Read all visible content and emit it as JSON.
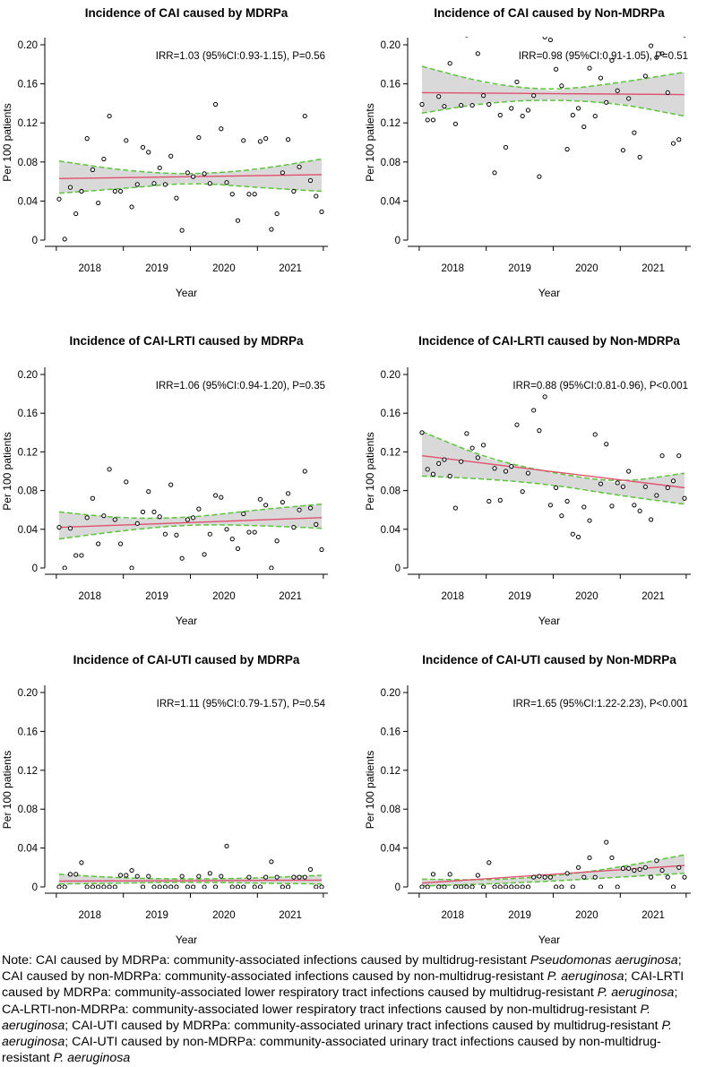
{
  "chart_data": [
    {
      "type": "scatter",
      "title": "Incidence of CAI caused by MDRPa",
      "annotation": "IRR=1.03 (95%CI:0.93-1.15), P=0.56",
      "xlabel": "Year",
      "ylabel": "Per 100 patients",
      "x_ticks": [
        "2018",
        "2019",
        "2020",
        "2021"
      ],
      "y_ticks": [
        "0",
        "0.04",
        "0.08",
        "0.12",
        "0.16",
        "0.20"
      ],
      "ylim": [
        0,
        0.2
      ],
      "x": [
        1,
        2,
        3,
        4,
        5,
        6,
        7,
        8,
        9,
        10,
        11,
        12,
        13,
        14,
        15,
        16,
        17,
        18,
        19,
        20,
        21,
        22,
        23,
        24,
        25,
        26,
        27,
        28,
        29,
        30,
        31,
        32,
        33,
        34,
        35,
        36,
        37,
        38,
        39,
        40,
        41,
        42,
        43,
        44,
        45,
        46,
        47,
        48
      ],
      "values": [
        0.042,
        0.001,
        0.054,
        0.027,
        0.05,
        0.104,
        0.072,
        0.038,
        0.083,
        0.127,
        0.05,
        0.05,
        0.102,
        0.034,
        0.057,
        0.095,
        0.09,
        0.058,
        0.074,
        0.057,
        0.086,
        0.043,
        0.01,
        0.069,
        0.065,
        0.105,
        0.068,
        0.058,
        0.139,
        0.114,
        0.059,
        0.047,
        0.02,
        0.102,
        0.047,
        0.047,
        0.101,
        0.104,
        0.011,
        0.027,
        0.069,
        0.103,
        0.05,
        0.075,
        0.127,
        0.061,
        0.045,
        0.029
      ],
      "fit": [
        0.063,
        0.067
      ],
      "ci_lower": [
        0.048,
        0.053,
        0.059,
        0.054,
        0.05
      ],
      "ci_upper": [
        0.081,
        0.071,
        0.067,
        0.072,
        0.083
      ],
      "colors": {
        "fit": "#e0506e",
        "ci": "#5cc43c",
        "band": "#d9d9d9"
      }
    },
    {
      "type": "scatter",
      "title": "Incidence of CAI caused by Non-MDRPa",
      "annotation": "IRR=0.98 (95%CI:0.91-1.05), P=0.51",
      "xlabel": "Year",
      "ylabel": "Per 100 patients",
      "x_ticks": [
        "2018",
        "2019",
        "2020",
        "2021"
      ],
      "y_ticks": [
        "0",
        "0.04",
        "0.08",
        "0.12",
        "0.16",
        "0.20"
      ],
      "ylim": [
        0,
        0.2
      ],
      "x": [
        1,
        2,
        3,
        4,
        5,
        6,
        7,
        8,
        9,
        10,
        11,
        12,
        13,
        14,
        15,
        16,
        17,
        18,
        19,
        20,
        21,
        22,
        23,
        24,
        25,
        26,
        27,
        28,
        29,
        30,
        31,
        32,
        33,
        34,
        35,
        36,
        37,
        38,
        39,
        40,
        41,
        42,
        43,
        44,
        45,
        46,
        47,
        48
      ],
      "values": [
        0.139,
        0.123,
        0.123,
        0.147,
        0.137,
        0.181,
        0.119,
        0.138,
        0.21,
        0.138,
        0.191,
        0.148,
        0.139,
        0.069,
        0.128,
        0.095,
        0.135,
        0.162,
        0.127,
        0.133,
        0.148,
        0.065,
        0.208,
        0.205,
        0.175,
        0.158,
        0.093,
        0.128,
        0.135,
        0.116,
        0.176,
        0.127,
        0.166,
        0.141,
        0.184,
        0.153,
        0.092,
        0.145,
        0.11,
        0.085,
        0.168,
        0.199,
        0.187,
        0.191,
        0.151,
        0.099,
        0.103,
        0.21
      ],
      "fit": [
        0.151,
        0.149
      ],
      "ci_lower": [
        0.13,
        0.141,
        0.144,
        0.14,
        0.127
      ],
      "ci_upper": [
        0.178,
        0.16,
        0.153,
        0.161,
        0.172
      ],
      "colors": {
        "fit": "#e0506e",
        "ci": "#5cc43c",
        "band": "#d9d9d9"
      }
    },
    {
      "type": "scatter",
      "title": "Incidence of CAI-LRTI caused by MDRPa",
      "annotation": "IRR=1.06 (95%CI:0.94-1.20), P=0.35",
      "xlabel": "Year",
      "ylabel": "Per 100 patients",
      "x_ticks": [
        "2018",
        "2019",
        "2020",
        "2021"
      ],
      "y_ticks": [
        "0",
        "0.04",
        "0.08",
        "0.12",
        "0.16",
        "0.20"
      ],
      "ylim": [
        0,
        0.2
      ],
      "x": [
        1,
        2,
        3,
        4,
        5,
        6,
        7,
        8,
        9,
        10,
        11,
        12,
        13,
        14,
        15,
        16,
        17,
        18,
        19,
        20,
        21,
        22,
        23,
        24,
        25,
        26,
        27,
        28,
        29,
        30,
        31,
        32,
        33,
        34,
        35,
        36,
        37,
        38,
        39,
        40,
        41,
        42,
        43,
        44,
        45,
        46,
        47,
        48
      ],
      "values": [
        0.042,
        0.0,
        0.041,
        0.013,
        0.013,
        0.052,
        0.072,
        0.025,
        0.054,
        0.102,
        0.05,
        0.025,
        0.089,
        0.0,
        0.046,
        0.058,
        0.079,
        0.058,
        0.053,
        0.035,
        0.086,
        0.034,
        0.01,
        0.05,
        0.052,
        0.061,
        0.014,
        0.035,
        0.075,
        0.073,
        0.04,
        0.03,
        0.02,
        0.056,
        0.037,
        0.037,
        0.071,
        0.065,
        0.0,
        0.028,
        0.068,
        0.077,
        0.042,
        0.06,
        0.1,
        0.062,
        0.045,
        0.019
      ],
      "fit": [
        0.042,
        0.052
      ],
      "ci_lower": [
        0.03,
        0.039,
        0.045,
        0.044,
        0.041
      ],
      "ci_upper": [
        0.058,
        0.051,
        0.052,
        0.06,
        0.066
      ],
      "colors": {
        "fit": "#e0506e",
        "ci": "#5cc43c",
        "band": "#d9d9d9"
      }
    },
    {
      "type": "scatter",
      "title": "Incidence of CAI-LRTI caused by Non-MDRPa",
      "annotation": "IRR=0.88 (95%CI:0.81-0.96), P<0.001",
      "xlabel": "Year",
      "ylabel": "Per 100 patients",
      "x_ticks": [
        "2018",
        "2019",
        "2020",
        "2021"
      ],
      "y_ticks": [
        "0",
        "0.04",
        "0.08",
        "0.12",
        "0.16",
        "0.20"
      ],
      "ylim": [
        0,
        0.2
      ],
      "x": [
        1,
        2,
        3,
        4,
        5,
        6,
        7,
        8,
        9,
        10,
        11,
        12,
        13,
        14,
        15,
        16,
        17,
        18,
        19,
        20,
        21,
        22,
        23,
        24,
        25,
        26,
        27,
        28,
        29,
        30,
        31,
        32,
        33,
        34,
        35,
        36,
        37,
        38,
        39,
        40,
        41,
        42,
        43,
        44,
        45,
        46,
        47,
        48
      ],
      "values": [
        0.14,
        0.102,
        0.097,
        0.108,
        0.112,
        0.095,
        0.062,
        0.11,
        0.139,
        0.124,
        0.114,
        0.127,
        0.069,
        0.103,
        0.07,
        0.1,
        0.105,
        0.148,
        0.079,
        0.098,
        0.163,
        0.142,
        0.177,
        0.065,
        0.083,
        0.054,
        0.069,
        0.035,
        0.032,
        0.063,
        0.049,
        0.138,
        0.087,
        0.128,
        0.064,
        0.088,
        0.084,
        0.1,
        0.065,
        0.059,
        0.084,
        0.05,
        0.075,
        0.116,
        0.083,
        0.09,
        0.116,
        0.072
      ],
      "fit": [
        0.116,
        0.083
      ],
      "ci_lower": [
        0.095,
        0.092,
        0.086,
        0.075,
        0.066
      ],
      "ci_upper": [
        0.141,
        0.113,
        0.098,
        0.088,
        0.098
      ],
      "colors": {
        "fit": "#e0506e",
        "ci": "#5cc43c",
        "band": "#d9d9d9"
      }
    },
    {
      "type": "scatter",
      "title": "Incidence of CAI-UTI caused by MDRPa",
      "annotation": "IRR=1.11 (95%CI:0.79-1.57), P=0.54",
      "xlabel": "Year",
      "ylabel": "Per 100 patients",
      "x_ticks": [
        "2018",
        "2019",
        "2020",
        "2021"
      ],
      "y_ticks": [
        "0",
        "0.04",
        "0.08",
        "0.12",
        "0.16",
        "0.20"
      ],
      "ylim": [
        0,
        0.2
      ],
      "x": [
        1,
        2,
        3,
        4,
        5,
        6,
        7,
        8,
        9,
        10,
        11,
        12,
        13,
        14,
        15,
        16,
        17,
        18,
        19,
        20,
        21,
        22,
        23,
        24,
        25,
        26,
        27,
        28,
        29,
        30,
        31,
        32,
        33,
        34,
        35,
        36,
        37,
        38,
        39,
        40,
        41,
        42,
        43,
        44,
        45,
        46,
        47,
        48
      ],
      "values": [
        0.0,
        0.0,
        0.013,
        0.013,
        0.025,
        0.0,
        0.0,
        0.0,
        0.0,
        0.0,
        0.0,
        0.012,
        0.012,
        0.017,
        0.011,
        0.0,
        0.011,
        0.0,
        0.0,
        0.0,
        0.0,
        0.0,
        0.011,
        0.0,
        0.0,
        0.011,
        0.0,
        0.014,
        0.0,
        0.011,
        0.042,
        0.0,
        0.0,
        0.0,
        0.01,
        0.0,
        0.0,
        0.01,
        0.026,
        0.01,
        0.0,
        0.0,
        0.01,
        0.01,
        0.01,
        0.018,
        0.0,
        0.0
      ],
      "fit": [
        0.006,
        0.007
      ],
      "ci_lower": [
        0.003,
        0.004,
        0.005,
        0.004,
        0.003
      ],
      "ci_upper": [
        0.013,
        0.009,
        0.008,
        0.009,
        0.012
      ],
      "colors": {
        "fit": "#e0506e",
        "ci": "#5cc43c",
        "band": "#d9d9d9"
      }
    },
    {
      "type": "scatter",
      "title": "Incidence of CAI-UTI caused by Non-MDRPa",
      "annotation": "IRR=1.65 (95%CI:1.22-2.23), P<0.001",
      "xlabel": "Year",
      "ylabel": "Per 100 patients",
      "x_ticks": [
        "2018",
        "2019",
        "2020",
        "2021"
      ],
      "y_ticks": [
        "0",
        "0.04",
        "0.08",
        "0.12",
        "0.16",
        "0.20"
      ],
      "ylim": [
        0,
        0.2
      ],
      "x": [
        1,
        2,
        3,
        4,
        5,
        6,
        7,
        8,
        9,
        10,
        11,
        12,
        13,
        14,
        15,
        16,
        17,
        18,
        19,
        20,
        21,
        22,
        23,
        24,
        25,
        26,
        27,
        28,
        29,
        30,
        31,
        32,
        33,
        34,
        35,
        36,
        37,
        38,
        39,
        40,
        41,
        42,
        43,
        44,
        45,
        46,
        47,
        48
      ],
      "values": [
        0.0,
        0.0,
        0.013,
        0.0,
        0.0,
        0.013,
        0.0,
        0.0,
        0.0,
        0.0,
        0.012,
        0.0,
        0.025,
        0.0,
        0.0,
        0.0,
        0.0,
        0.0,
        0.0,
        0.0,
        0.01,
        0.011,
        0.01,
        0.01,
        0.0,
        0.0,
        0.014,
        0.0,
        0.02,
        0.01,
        0.03,
        0.01,
        0.0,
        0.046,
        0.03,
        0.0,
        0.019,
        0.019,
        0.017,
        0.018,
        0.02,
        0.01,
        0.027,
        0.017,
        0.01,
        0.0,
        0.02,
        0.01
      ],
      "fit": [
        0.004,
        0.022
      ],
      "ci_lower": [
        0.001,
        0.003,
        0.006,
        0.01,
        0.014
      ],
      "ci_upper": [
        0.008,
        0.007,
        0.011,
        0.02,
        0.033
      ],
      "colors": {
        "fit": "#e0506e",
        "ci": "#5cc43c",
        "band": "#d9d9d9"
      }
    }
  ],
  "note": {
    "segments": [
      {
        "text": "Note: CAI caused by MDRPa: community-associated infections caused by multidrug-resistant ",
        "italic": false
      },
      {
        "text": "Pseudomonas aeruginosa",
        "italic": true
      },
      {
        "text": "; CAI caused by non-MDRPa: community-associated infections caused by non-multidrug-resistant ",
        "italic": false
      },
      {
        "text": "P. aeruginosa",
        "italic": true
      },
      {
        "text": "; CAI-LRTI caused by MDRPa: community-associated lower respiratory tract infections caused by multidrug-resistant ",
        "italic": false
      },
      {
        "text": "P. aeruginosa",
        "italic": true
      },
      {
        "text": "; CA-LRTI-non-MDRPa: community-associated lower respiratory tract infections caused by non-multidrug-resistant ",
        "italic": false
      },
      {
        "text": "P. aeruginosa",
        "italic": true
      },
      {
        "text": "; CAI-UTI caused by MDRPa: community-associated urinary tract infections caused by multidrug-resistant ",
        "italic": false
      },
      {
        "text": "P. aeruginosa",
        "italic": true
      },
      {
        "text": "; CAI-UTI caused by non-MDRPa: community-associated urinary tract infections caused by non-multidrug-resistant ",
        "italic": false
      },
      {
        "text": "P. aeruginosa",
        "italic": true
      }
    ]
  }
}
